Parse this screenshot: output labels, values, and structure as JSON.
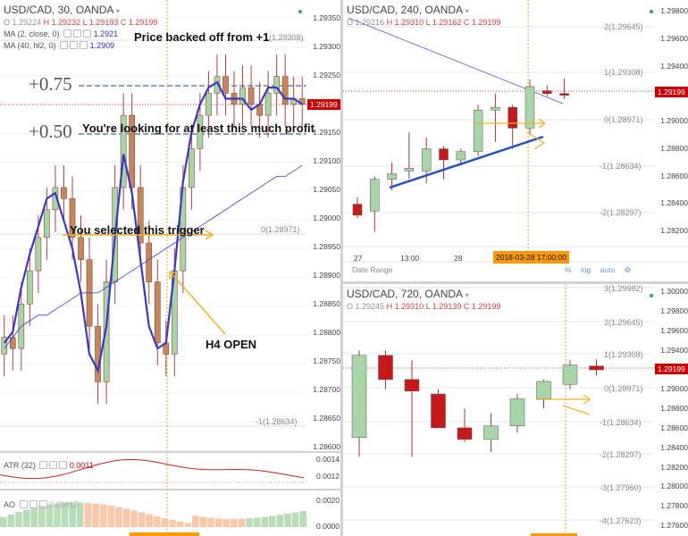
{
  "left": {
    "title": "USD/CAD, 30, OANDA",
    "ohlc": {
      "o": "O 1.29224",
      "h": "H 1.29232",
      "l": "L 1.29193",
      "c": "C 1.29199"
    },
    "ma1": {
      "label": "MA (2, close, 0)",
      "value": "1.2921"
    },
    "ma2": {
      "label": "MA (40, hl2, 0)",
      "value": "1.2909"
    },
    "price_ticks": [
      "1.29350",
      "1.29300",
      "1.29250",
      "1.29200",
      "1.29150",
      "1.29100",
      "1.29050",
      "1.29000",
      "1.28950",
      "1.28900",
      "1.28850",
      "1.28800",
      "1.28750",
      "1.28700",
      "1.28650",
      "1.28600"
    ],
    "current_price": "1.29199",
    "fib_labels": {
      "plus075": "+0.75",
      "plus050": "+0.50",
      "level1": "1(1.29308)",
      "level0": "0(1.28971)",
      "levelm1": "-1(1.28634)"
    },
    "annotations": {
      "backed_off": "Price backed off from +1",
      "looking_for": "You're looking for at least this much profit",
      "selected": "You selected this trigger",
      "h4_open": "H4 OPEN"
    },
    "atr": {
      "label": "ATR (32)",
      "value": "0.0011",
      "ticks": [
        "0.0014",
        "0.0012"
      ]
    },
    "ao": {
      "label": "AO",
      "value": "0.00012",
      "ticks": [
        "0.0020",
        "0.0000"
      ]
    }
  },
  "top_right": {
    "title": "USD/CAD, 240, OANDA",
    "ohlc": {
      "o": "O 1.29216",
      "h": "H 1.29310",
      "l": "L 1.29162",
      "c": "C 1.29199"
    },
    "price_ticks": [
      "1.29800",
      "1.29600",
      "1.29400",
      "1.29200",
      "1.29000",
      "1.28800",
      "1.28600",
      "1.28400",
      "1.28200"
    ],
    "fib": [
      "2(1.29645)",
      "1(1.29308)",
      "0(1.28971)",
      "-1(1.28634)",
      "-2(1.28297)"
    ],
    "current_price": "1.29199",
    "x_labels": [
      "27",
      "13:00",
      "28",
      "13:00"
    ],
    "date_tag": "2018-03-28 17:00:00",
    "date_range": "Date Range",
    "buttons": [
      "%",
      "log",
      "auto"
    ]
  },
  "bottom_right": {
    "title": "USD/CAD, 720, OANDA",
    "ohlc": {
      "o": "O 1.29245",
      "h": "H 1.29310",
      "l": "L 1.29139",
      "c": "C 1.29199"
    },
    "price_ticks": [
      "1.30000",
      "1.29800",
      "1.29600",
      "1.29400",
      "1.29200",
      "1.29000",
      "1.28800",
      "1.28600",
      "1.28400",
      "1.28200",
      "1.28000",
      "1.27800",
      "1.27600"
    ],
    "fib": [
      "3(1.29982)",
      "2(1.29645)",
      "1(1.29308)",
      "0(1.28971)",
      "-1(1.28634)",
      "-2(1.28297)",
      "-3(1.27960)",
      "-4(1.27623)"
    ],
    "current_price": "1.29199"
  },
  "colors": {
    "up": "#a8d5a8",
    "down": "#c81818",
    "ma_fast": "#3a38c8",
    "ma_slow": "#3a38c8",
    "fib": "#4a6a8a",
    "annot_arrow": "#f0b020",
    "trend": "#2050c0",
    "candle_brown": "#c8845a"
  },
  "chart_data": [
    {
      "type": "candlestick",
      "title": "USD/CAD, 30, OANDA",
      "ylim": [
        1.28575,
        1.29375
      ],
      "candles_down_brown": true,
      "closes": [
        1.2878,
        1.2876,
        1.2884,
        1.289,
        1.2896,
        1.2901,
        1.2905,
        1.2903,
        1.2896,
        1.2892,
        1.288,
        1.287,
        1.2888,
        1.2905,
        1.2918,
        1.2905,
        1.2895,
        1.2888,
        1.2877,
        1.2875,
        1.289,
        1.2905,
        1.2912,
        1.2918,
        1.2922,
        1.2925,
        1.2922,
        1.292,
        1.2923,
        1.292,
        1.2918,
        1.2922,
        1.2925,
        1.292,
        1.2921,
        1.292
      ],
      "ma_fast": [
        1.2877,
        1.2879,
        1.2887,
        1.2893,
        1.2898,
        1.2903,
        1.2904,
        1.2899,
        1.2894,
        1.2886,
        1.2875,
        1.2872,
        1.288,
        1.2896,
        1.2911,
        1.2904,
        1.2892,
        1.288,
        1.2876,
        1.2877,
        1.289,
        1.2906,
        1.2915,
        1.292,
        1.2923,
        1.2924,
        1.2921,
        1.2921,
        1.2921,
        1.2919,
        1.292,
        1.2923,
        1.2923,
        1.2921,
        1.2921,
        1.292
      ],
      "ma_slow": [
        1.2876,
        1.2878,
        1.288,
        1.2881,
        1.2882,
        1.2882,
        1.2883,
        1.2884,
        1.2885,
        1.2886,
        1.2886,
        1.2886,
        1.2887,
        1.2888,
        1.2889,
        1.289,
        1.2891,
        1.2892,
        1.2893,
        1.2894,
        1.2895,
        1.2896,
        1.2897,
        1.2898,
        1.2899,
        1.29,
        1.2901,
        1.2902,
        1.2903,
        1.2904,
        1.2905,
        1.2906,
        1.2907,
        1.2907,
        1.2908,
        1.2909
      ]
    },
    {
      "type": "candlestick",
      "title": "USD/CAD, 240, OANDA",
      "ylim": [
        1.281,
        1.2985
      ],
      "candles": [
        {
          "o": 1.284,
          "h": 1.2845,
          "l": 1.283,
          "c": 1.2832
        },
        {
          "o": 1.2835,
          "h": 1.286,
          "l": 1.282,
          "c": 1.2858
        },
        {
          "o": 1.2858,
          "h": 1.287,
          "l": 1.285,
          "c": 1.2862
        },
        {
          "o": 1.2864,
          "h": 1.2892,
          "l": 1.2858,
          "c": 1.2866
        },
        {
          "o": 1.2864,
          "h": 1.2888,
          "l": 1.2855,
          "c": 1.288
        },
        {
          "o": 1.288,
          "h": 1.2882,
          "l": 1.2858,
          "c": 1.2872
        },
        {
          "o": 1.2872,
          "h": 1.288,
          "l": 1.2868,
          "c": 1.2878
        },
        {
          "o": 1.2878,
          "h": 1.2912,
          "l": 1.2875,
          "c": 1.2908
        },
        {
          "o": 1.2908,
          "h": 1.292,
          "l": 1.2885,
          "c": 1.291
        },
        {
          "o": 1.291,
          "h": 1.2912,
          "l": 1.288,
          "c": 1.2895
        },
        {
          "o": 1.2895,
          "h": 1.293,
          "l": 1.289,
          "c": 1.2925
        },
        {
          "o": 1.2922,
          "h": 1.2926,
          "l": 1.2918,
          "c": 1.292
        },
        {
          "o": 1.292,
          "h": 1.2931,
          "l": 1.2916,
          "c": 1.2919
        }
      ]
    },
    {
      "type": "candlestick",
      "title": "USD/CAD, 720, OANDA",
      "ylim": [
        1.275,
        1.3005
      ],
      "candles": [
        {
          "o": 1.285,
          "h": 1.294,
          "l": 1.283,
          "c": 1.2935
        },
        {
          "o": 1.2935,
          "h": 1.294,
          "l": 1.29,
          "c": 1.291
        },
        {
          "o": 1.291,
          "h": 1.293,
          "l": 1.283,
          "c": 1.2898
        },
        {
          "o": 1.2895,
          "h": 1.29,
          "l": 1.286,
          "c": 1.286
        },
        {
          "o": 1.286,
          "h": 1.288,
          "l": 1.2845,
          "c": 1.2848
        },
        {
          "o": 1.2848,
          "h": 1.2875,
          "l": 1.2835,
          "c": 1.2862
        },
        {
          "o": 1.2862,
          "h": 1.2895,
          "l": 1.2855,
          "c": 1.289
        },
        {
          "o": 1.289,
          "h": 1.291,
          "l": 1.288,
          "c": 1.2908
        },
        {
          "o": 1.2905,
          "h": 1.293,
          "l": 1.29,
          "c": 1.2925
        },
        {
          "o": 1.2924,
          "h": 1.2931,
          "l": 1.2914,
          "c": 1.292
        }
      ]
    }
  ]
}
